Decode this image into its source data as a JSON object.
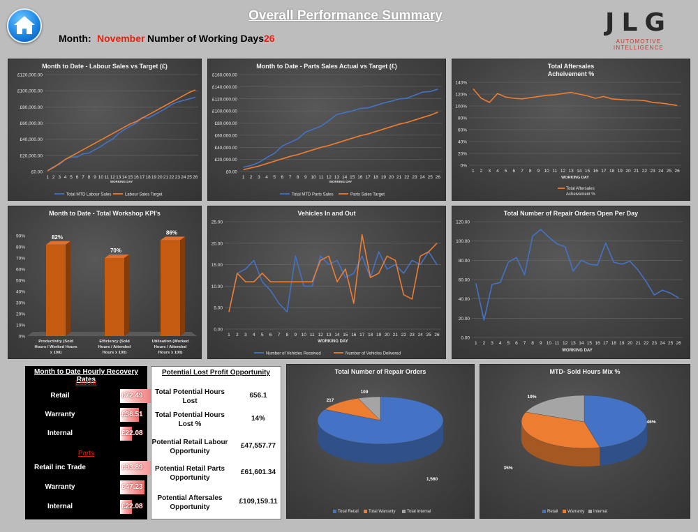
{
  "header": {
    "title": "Overall Performance Summary",
    "month_label": "Month:",
    "month_value": "November",
    "wd_label": "Number of Working Days",
    "wd_value": "26",
    "logo_text": "JLG",
    "logo_sub": "AUTOMOTIVE INTELLIGENCE",
    "home_icon": "home-icon"
  },
  "colors": {
    "blue": "#4472c4",
    "orange": "#ed7d31",
    "grey": "#a5a5a5",
    "bar": "#c55a11",
    "red": "#e8200c"
  },
  "chart_data": [
    {
      "id": "labour",
      "type": "line",
      "title": "Month to Date - Labour Sales vs Target (£)",
      "xlabel": "WORKING DAY",
      "x": [
        1,
        2,
        3,
        4,
        5,
        6,
        7,
        8,
        9,
        10,
        11,
        12,
        13,
        14,
        15,
        16,
        17,
        18,
        19,
        20,
        21,
        22,
        23,
        24,
        25,
        26
      ],
      "ylim": [
        0,
        120000
      ],
      "yticks": [
        "£0.00",
        "£20,000.00",
        "£40,000.00",
        "£60,000.00",
        "£80,000.00",
        "£100,000.00",
        "£120,000.00"
      ],
      "series": [
        {
          "name": "Total MTD Labour Sales",
          "color": "#4472c4",
          "values": [
            1000,
            6000,
            9000,
            15000,
            18000,
            18000,
            22000,
            23000,
            27000,
            31000,
            36000,
            40000,
            47000,
            52000,
            56000,
            60000,
            67000,
            66000,
            70000,
            74000,
            78000,
            83000,
            86000,
            88000,
            90000,
            92000
          ]
        },
        {
          "name": "Labour Sales Target",
          "color": "#ed7d31",
          "values": [
            1000,
            5000,
            10000,
            15000,
            19000,
            23000,
            27000,
            31000,
            35000,
            39000,
            43000,
            47000,
            51000,
            55000,
            59000,
            62000,
            66000,
            70000,
            74000,
            78000,
            82000,
            86000,
            90000,
            94000,
            98000,
            101000
          ]
        }
      ]
    },
    {
      "id": "parts",
      "type": "line",
      "title": "Month to Date - Parts Sales Actual vs Target (£)",
      "xlabel": "WORKING DAY",
      "x": [
        1,
        2,
        3,
        4,
        5,
        6,
        7,
        8,
        9,
        10,
        11,
        12,
        13,
        14,
        15,
        16,
        17,
        18,
        19,
        20,
        21,
        22,
        23,
        24,
        25,
        26
      ],
      "ylim": [
        0,
        160000
      ],
      "yticks": [
        "£0.00",
        "£20,000.00",
        "£40,000.00",
        "£60,000.00",
        "£80,000.00",
        "£100,000.00",
        "£120,000.00",
        "£140,000.00",
        "£160,000.00"
      ],
      "series": [
        {
          "name": "Total MTD Parts Sales",
          "color": "#4472c4",
          "values": [
            7000,
            10000,
            15000,
            23000,
            30000,
            42000,
            48000,
            54000,
            65000,
            70000,
            75000,
            84000,
            94000,
            97000,
            100000,
            104000,
            105000,
            109000,
            113000,
            116000,
            120000,
            121000,
            126000,
            131000,
            132000,
            136000
          ]
        },
        {
          "name": "Parts Sales Target",
          "color": "#ed7d31",
          "values": [
            3000,
            6000,
            9000,
            13000,
            17000,
            21000,
            25000,
            28000,
            32000,
            36000,
            40000,
            43000,
            47000,
            51000,
            55000,
            59000,
            62000,
            66000,
            70000,
            74000,
            78000,
            81000,
            85000,
            89000,
            93000,
            98000
          ]
        }
      ]
    },
    {
      "id": "aftersales",
      "type": "line",
      "title": "Total Aftersales",
      "title2": "Acheivement %",
      "xlabel": "WORKING DAY",
      "x": [
        1,
        2,
        3,
        4,
        5,
        6,
        7,
        8,
        9,
        10,
        11,
        12,
        13,
        14,
        15,
        16,
        17,
        18,
        19,
        20,
        21,
        22,
        23,
        24,
        25,
        26
      ],
      "ylim": [
        0,
        140
      ],
      "yticks": [
        "0%",
        "20%",
        "40%",
        "60%",
        "80%",
        "100%",
        "120%",
        "140%"
      ],
      "series": [
        {
          "name": "Total Aftersales Acheivement %",
          "color": "#ed7d31",
          "values": [
            129,
            113,
            106,
            121,
            115,
            113,
            112,
            114,
            116,
            118,
            119,
            121,
            123,
            120,
            117,
            113,
            116,
            112,
            111,
            110,
            110,
            109,
            106,
            105,
            103,
            101
          ]
        }
      ]
    },
    {
      "id": "kpi",
      "type": "bar",
      "title": "Month to Date - Total Workshop KPI's",
      "categories": [
        "Productivity (Sold Hours / Worked Hours x 100)",
        "Efficiency (Sold Hours / Attended Hours x 100)",
        "Utilisation (Worked Hours / Attended Hours x 100)"
      ],
      "values": [
        82,
        70,
        86
      ],
      "labels": [
        "82%",
        "70%",
        "86%"
      ],
      "ylim": [
        0,
        90
      ],
      "yticks": [
        "0%",
        "10%",
        "20%",
        "30%",
        "40%",
        "50%",
        "60%",
        "70%",
        "80%",
        "90%"
      ]
    },
    {
      "id": "vehicles",
      "type": "line",
      "title": "Vehicles In and Out",
      "xlabel": "WORKING DAY",
      "x": [
        1,
        2,
        3,
        4,
        5,
        6,
        7,
        8,
        9,
        10,
        11,
        12,
        13,
        14,
        15,
        16,
        17,
        18,
        19,
        20,
        21,
        22,
        23,
        24,
        25,
        26
      ],
      "ylim": [
        0,
        25
      ],
      "yticks": [
        "0.00",
        "5.00",
        "10.00",
        "15.00",
        "20.00",
        "25.00"
      ],
      "series": [
        {
          "name": "Number of Vehicles Received",
          "color": "#4472c4",
          "values": [
            4,
            13,
            14,
            16,
            11,
            9,
            6,
            4,
            17,
            10,
            10,
            17,
            15,
            16,
            12,
            13,
            17,
            12,
            18,
            14,
            15,
            13,
            16,
            15,
            18,
            15
          ]
        },
        {
          "name": "Number of Vehicles Delivered",
          "color": "#ed7d31",
          "values": [
            4,
            13,
            11,
            11,
            13,
            11,
            11,
            11,
            11,
            11,
            11,
            16,
            17,
            11,
            14,
            6,
            22,
            12,
            13,
            17,
            16,
            8,
            7,
            17,
            18,
            20
          ]
        }
      ]
    },
    {
      "id": "repair_open",
      "type": "line",
      "title": "Total Number of Repair Orders Open Per Day",
      "xlabel": "WORKING DAY",
      "x": [
        1,
        2,
        3,
        4,
        5,
        6,
        7,
        8,
        9,
        10,
        11,
        12,
        13,
        14,
        15,
        16,
        17,
        18,
        19,
        20,
        21,
        22,
        23,
        24,
        25,
        26
      ],
      "ylim": [
        0,
        120
      ],
      "yticks": [
        "0.00",
        "20.00",
        "40.00",
        "60.00",
        "80.00",
        "100.00",
        "120.00"
      ],
      "series": [
        {
          "name": "Repair Orders Open",
          "color": "#4472c4",
          "values": [
            56,
            18,
            55,
            57,
            78,
            83,
            65,
            105,
            112,
            104,
            97,
            94,
            69,
            80,
            76,
            75,
            98,
            78,
            76,
            79,
            70,
            58,
            44,
            49,
            46,
            41
          ]
        }
      ]
    },
    {
      "id": "repair_total",
      "type": "pie",
      "title": "Total Number of Repair Orders",
      "labels": [
        "Total Retail",
        "Total Warranty",
        "Total Internal"
      ],
      "values": [
        1560,
        217,
        109
      ],
      "value_labels": [
        "1,560",
        "217",
        "109"
      ],
      "colors": [
        "#4472c4",
        "#ed7d31",
        "#a5a5a5"
      ]
    },
    {
      "id": "hours_mix",
      "type": "pie",
      "title": "MTD- Sold Hours Mix %",
      "labels": [
        "Retail",
        "Warranty",
        "Internal"
      ],
      "values": [
        46,
        35,
        19
      ],
      "value_labels": [
        "46%",
        "35%",
        "19%"
      ],
      "colors": [
        "#4472c4",
        "#ed7d31",
        "#a5a5a5"
      ]
    }
  ],
  "recovery": {
    "title": "Month to Date Hourly Recovery Rates",
    "labour_head": "Labour",
    "parts_head": "Parts",
    "labour": [
      {
        "label": "Retail",
        "value": "£72.49",
        "amount": 72.49
      },
      {
        "label": "Warranty",
        "value": "£36.51",
        "amount": 36.51
      },
      {
        "label": "Internal",
        "value": "£22.08",
        "amount": 22.08
      }
    ],
    "parts": [
      {
        "label": "Retail inc Trade",
        "value": "£93.89",
        "amount": 93.89
      },
      {
        "label": "Warranty",
        "value": "£47.23",
        "amount": 47.23
      },
      {
        "label": "Internal",
        "value": "£22.08",
        "amount": 22.08
      }
    ]
  },
  "opportunity": {
    "title": "Potential Lost Profit Opportunity",
    "rows": [
      {
        "label": "Total Potential Hours Lost",
        "value": "656.1"
      },
      {
        "label": "Total Potential Hours Lost %",
        "value": "14%"
      },
      {
        "label": "Potential Retail Labour Opportunity",
        "value": "£47,557.77"
      },
      {
        "label": "Potential Retail Parts Opportunity",
        "value": "£61,601.34"
      },
      {
        "label": "Potential Aftersales Opportunity",
        "value": "£109,159.11"
      }
    ]
  }
}
